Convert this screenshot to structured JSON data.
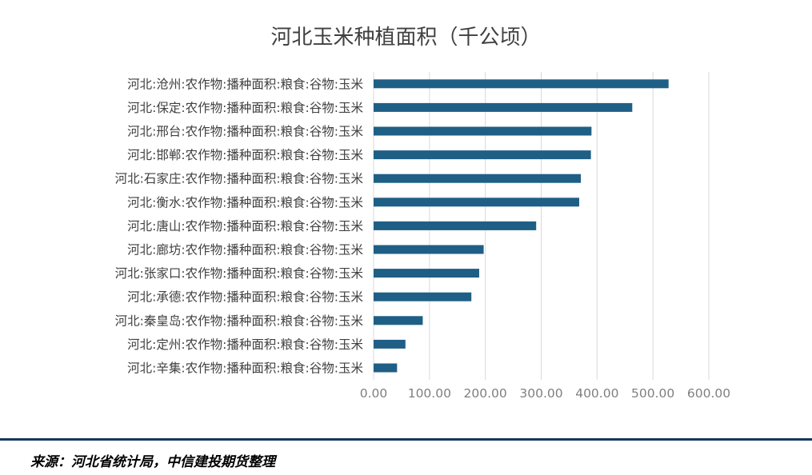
{
  "chart_data": {
    "type": "bar",
    "orientation": "horizontal",
    "title": "河北玉米种植面积（千公顷）",
    "categories": [
      "河北:沧州:农作物:播种面积:粮食:谷物:玉米",
      "河北:保定:农作物:播种面积:粮食:谷物:玉米",
      "河北:邢台:农作物:播种面积:粮食:谷物:玉米",
      "河北:邯郸:农作物:播种面积:粮食:谷物:玉米",
      "河北:石家庄:农作物:播种面积:粮食:谷物:玉米",
      "河北:衡水:农作物:播种面积:粮食:谷物:玉米",
      "河北:唐山:农作物:播种面积:粮食:谷物:玉米",
      "河北:廊坊:农作物:播种面积:粮食:谷物:玉米",
      "河北:张家口:农作物:播种面积:粮食:谷物:玉米",
      "河北:承德:农作物:播种面积:粮食:谷物:玉米",
      "河北:秦皇岛:农作物:播种面积:粮食:谷物:玉米",
      "河北:定州:农作物:播种面积:粮食:谷物:玉米",
      "河北:辛集:农作物:播种面积:粮食:谷物:玉米"
    ],
    "values": [
      528,
      463,
      390,
      389,
      371,
      368,
      291,
      197,
      189,
      175,
      88,
      57,
      42
    ],
    "xlim": [
      0,
      600
    ],
    "ticks": [
      "0.00",
      "100.00",
      "200.00",
      "300.00",
      "400.00",
      "500.00",
      "600.00"
    ],
    "tick_values": [
      0,
      100,
      200,
      300,
      400,
      500,
      600
    ],
    "bar_color": "#1f5f86",
    "grid": true,
    "legend": false
  },
  "source": "来源：河北省统计局，中信建投期货整理",
  "colors": {
    "footer_rule": "#17375e"
  }
}
